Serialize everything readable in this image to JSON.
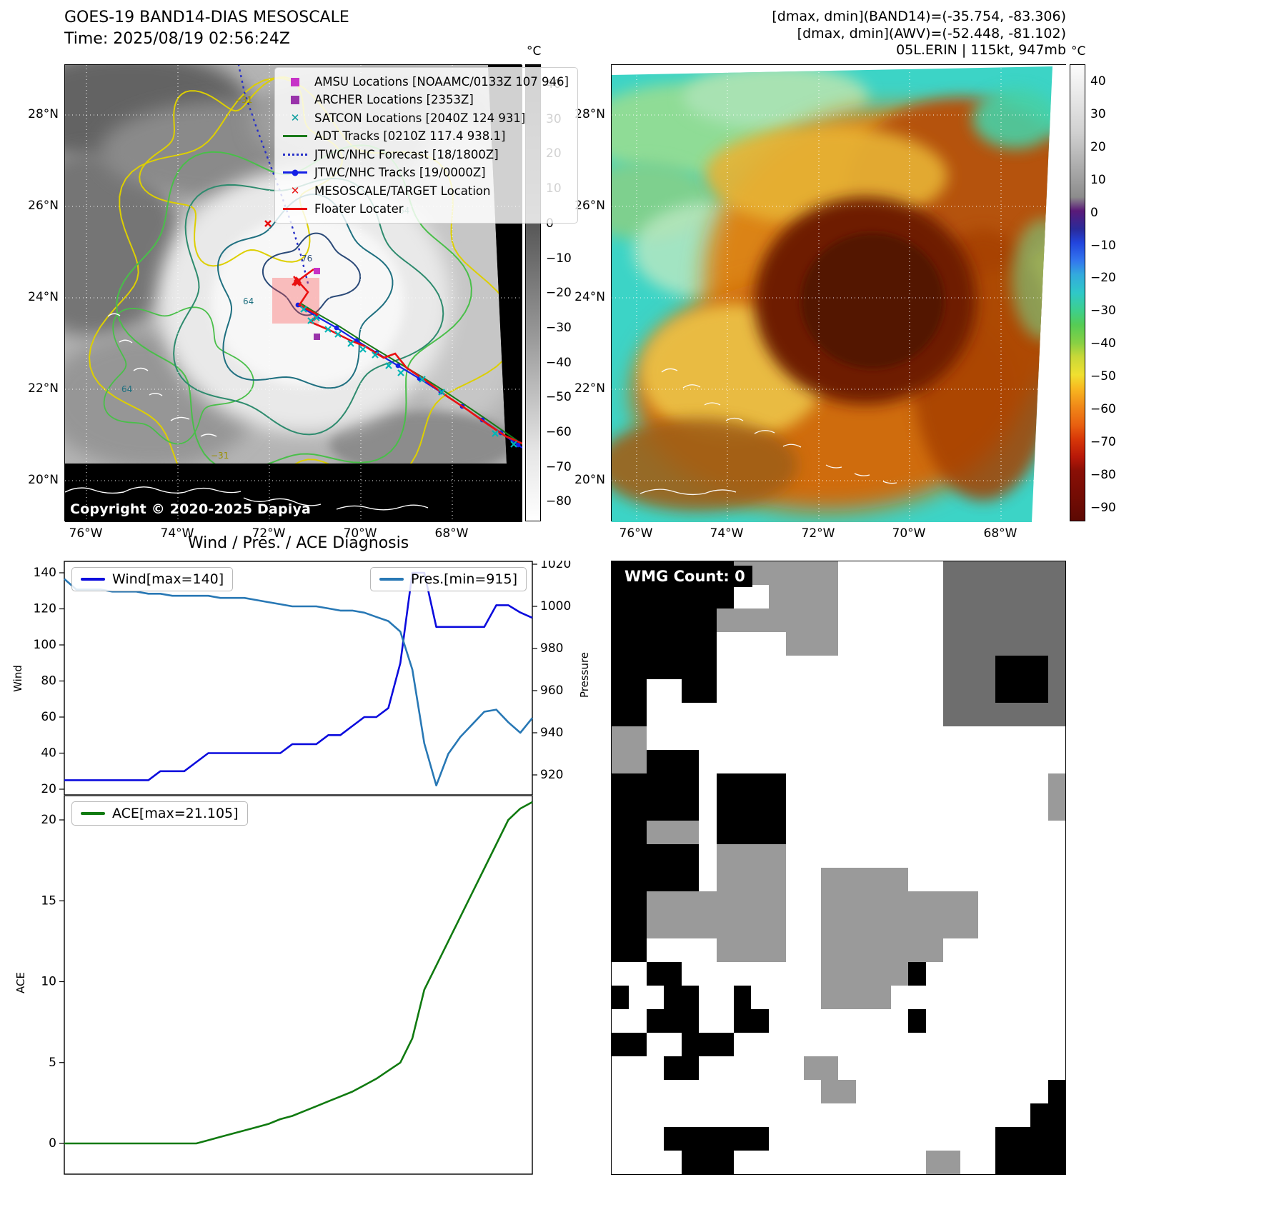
{
  "band14_panel": {
    "title": "GOES-19 BAND14-DIAS MESOSCALE",
    "time_line": "Time: 2025/08/19 02:56:24Z",
    "copyright": "Copyright © 2020-2025 Dapiya",
    "colorbar_unit": "°C",
    "colorbar_ticks": [
      "40",
      "30",
      "20",
      "10",
      "0",
      "−10",
      "−20",
      "−30",
      "−40",
      "−50",
      "−60",
      "−70",
      "−80"
    ],
    "lat_ticks": [
      "28°N",
      "26°N",
      "24°N",
      "22°N",
      "20°N"
    ],
    "lon_ticks": [
      "76°W",
      "74°W",
      "72°W",
      "70°W",
      "68°W"
    ],
    "contour_labels": [
      "−31",
      "−31",
      "64",
      "64",
      "76",
      "64"
    ],
    "legend": [
      {
        "label": "AMSU Locations [NOAAMC/0133Z 107 946]",
        "marker": "square",
        "color": "#c733c7"
      },
      {
        "label": "ARCHER Locations [2353Z]",
        "marker": "square",
        "color": "#9933aa"
      },
      {
        "label": "SATCON Locations [2040Z 124 931]",
        "marker": "x",
        "color": "#009999"
      },
      {
        "label": "ADT Tracks [0210Z 117.4 938.1]",
        "marker": "line",
        "color": "#1a7a1a"
      },
      {
        "label": "JTWC/NHC Forecast [18/1800Z]",
        "marker": "dotted",
        "color": "#2730c8"
      },
      {
        "label": "JTWC/NHC Tracks [19/0000Z]",
        "marker": "line-dot",
        "color": "#1520e6"
      },
      {
        "label": "MESOSCALE/TARGET Location",
        "marker": "x",
        "color": "#e81010"
      },
      {
        "label": "Floater Locater",
        "marker": "line",
        "color": "#ea1010"
      }
    ]
  },
  "awv_panel": {
    "header_lines": [
      "[dmax, dmin](BAND14)=(-35.754, -83.306)",
      "[dmax, dmin](AWV)=(-52.448, -81.102)",
      "05L.ERIN | 115kt, 947mb"
    ],
    "colorbar_unit": "°C",
    "colorbar_ticks": [
      "40",
      "30",
      "20",
      "10",
      "0",
      "−10",
      "−20",
      "−30",
      "−40",
      "−50",
      "−60",
      "−70",
      "−80",
      "−90"
    ],
    "lat_ticks": [
      "28°N",
      "26°N",
      "24°N",
      "22°N",
      "20°N"
    ],
    "lon_ticks": [
      "76°W",
      "74°W",
      "72°W",
      "70°W",
      "68°W"
    ]
  },
  "diagnosis_title": "Wind / Pres. / ACE Diagnosis",
  "chart_data": [
    {
      "type": "line",
      "title": "Wind / Pres. / ACE Diagnosis",
      "axes": {
        "left": {
          "label": "Wind",
          "ticks": [
            20,
            40,
            60,
            80,
            100,
            120,
            140
          ],
          "min": 20,
          "max": 140
        },
        "right": {
          "label": "Pressure",
          "ticks": [
            920,
            940,
            960,
            980,
            1000,
            1020
          ],
          "min": 920,
          "max": 1020
        }
      },
      "series": [
        {
          "name": "Wind[max=140]",
          "axis": "left",
          "color": "#0b0bdd",
          "legend_pos": "upper-left",
          "values": [
            25,
            25,
            25,
            25,
            25,
            25,
            25,
            25,
            30,
            30,
            30,
            35,
            40,
            40,
            40,
            40,
            40,
            40,
            40,
            45,
            45,
            45,
            50,
            50,
            55,
            60,
            60,
            65,
            90,
            140,
            140,
            110,
            110,
            110,
            110,
            110,
            122,
            122,
            118,
            115
          ]
        },
        {
          "name": "Pres.[min=915]",
          "axis": "right",
          "color": "#2878b5",
          "legend_pos": "upper-right",
          "values": [
            1013,
            1008,
            1008,
            1008,
            1007,
            1007,
            1007,
            1006,
            1006,
            1005,
            1005,
            1005,
            1005,
            1004,
            1004,
            1004,
            1003,
            1002,
            1001,
            1000,
            1000,
            1000,
            999,
            998,
            998,
            997,
            995,
            993,
            988,
            970,
            935,
            915,
            930,
            938,
            944,
            950,
            951,
            945,
            940,
            947
          ]
        }
      ]
    },
    {
      "type": "line",
      "axes": {
        "left": {
          "label": "ACE",
          "ticks": [
            0,
            5,
            10,
            15,
            20
          ],
          "min": 0,
          "max": 20
        }
      },
      "series": [
        {
          "name": "ACE[max=21.105]",
          "axis": "left",
          "color": "#107a10",
          "legend_pos": "upper-left",
          "values": [
            0,
            0,
            0,
            0,
            0,
            0,
            0,
            0,
            0,
            0,
            0,
            0,
            0.2,
            0.4,
            0.6,
            0.8,
            1,
            1.2,
            1.5,
            1.7,
            2,
            2.3,
            2.6,
            2.9,
            3.2,
            3.6,
            4,
            4.5,
            5,
            6.5,
            9.5,
            11,
            12.5,
            14,
            15.5,
            17,
            18.5,
            20,
            20.7,
            21.105
          ]
        }
      ]
    }
  ],
  "wmg_panel": {
    "label": "WMG Count: 0",
    "palette": {
      "w": "#ffffff",
      "g": "#9a9a9a",
      "d": "#6e6e6e",
      "k": "#000000"
    },
    "grid": [
      "kkkkkkkggggggwwwwwwddddddd",
      "kkkkkkkwwggggwwwwwwddddddd",
      "kkkkkkgggggggwwwwwwddddddd",
      "kkkkkkwwwwgggwwwwwwddddddd",
      "kkkkkkwwwwwwwwwwwwwdddkkkd",
      "kkwwkkwwwwwwwwwwwwwdddkkkd",
      "kkwwwwwwwwwwwwwwwwwddddddd",
      "ggwwwwwwwwwwwwwwwwwwwwwwww",
      "ggkkkwwwwwwwwwwwwwwwwwwwww",
      "kkkkkwkkkkwwwwwwwwwwwwwwwg",
      "kkkkkwkkkkwwwwwwwwwwwwwwwg",
      "kkgggwkkkkwwwwwwwwwwwwwwww",
      "kkkkkwggggwwwwwwwwwwwwwwww",
      "kkkkkwggggwwgggggwwwwwwwww",
      "kkggggggggwwgggggggggwwwww",
      "kkggggggggwwgggggggggwwwww",
      "kkwwwwggggwwgggggggwwwwwww",
      "wwkkwwwwwwwwgggggkwwwwwwww",
      "kwwkkwwkwwwwggggwwwwwwwwww",
      "wwkkkwwkkwwwwwwwwkwwwwwwww",
      "kkwwkkkwwwwwwwwwwwwwwwwwww",
      "wwwkkwwwwwwggwwwwwwwwwwwww",
      "wwwwwwwwwwwwggwwwwwwwwwwwk",
      "wwwwwwwwwwwwwwwwwwwwwwwwkk",
      "wwwkkkkkkwwwwwwwwwwwwwkkkk",
      "wwwwkkkwwwwwwwwwwwggwwkkkk"
    ]
  }
}
